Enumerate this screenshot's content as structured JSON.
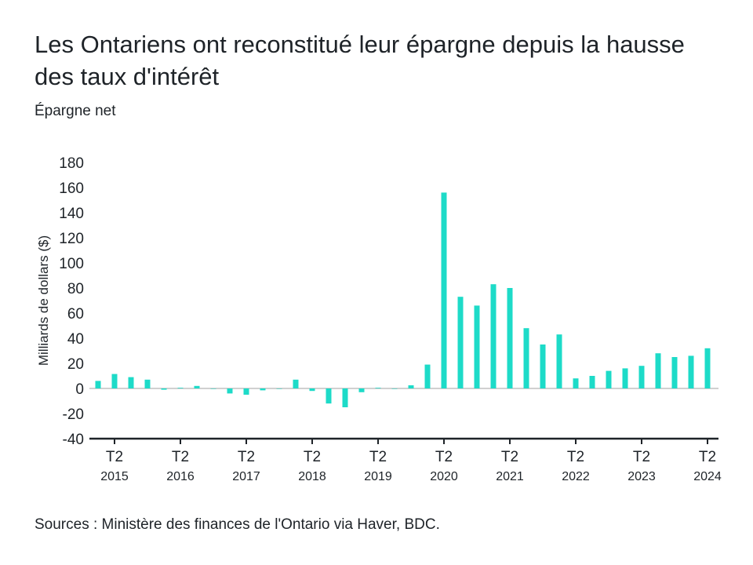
{
  "title": "Les Ontariens ont reconstitué leur épargne depuis la hausse des taux d'intérêt",
  "subtitle": "Épargne net",
  "source": "Sources : Ministère des finances de l'Ontario via Haver, BDC.",
  "chart_data": {
    "type": "bar",
    "ylabel": "Milliards de dollars ($)",
    "ylim": [
      -40,
      180
    ],
    "yticks": [
      -40,
      -20,
      0,
      20,
      40,
      60,
      80,
      100,
      120,
      140,
      160,
      180
    ],
    "bar_color": "#1ddbc8",
    "x_tick_labels": [
      {
        "quarter": "T2",
        "year": "2015"
      },
      {
        "quarter": "T2",
        "year": "2016"
      },
      {
        "quarter": "T2",
        "year": "2017"
      },
      {
        "quarter": "T2",
        "year": "2018"
      },
      {
        "quarter": "T2",
        "year": "2019"
      },
      {
        "quarter": "T2",
        "year": "2020"
      },
      {
        "quarter": "T2",
        "year": "2021"
      },
      {
        "quarter": "T2",
        "year": "2022"
      },
      {
        "quarter": "T2",
        "year": "2023"
      },
      {
        "quarter": "T2",
        "year": "2024"
      }
    ],
    "categories": [
      "T1 2015",
      "T2 2015",
      "T3 2015",
      "T4 2015",
      "T1 2016",
      "T2 2016",
      "T3 2016",
      "T4 2016",
      "T1 2017",
      "T2 2017",
      "T3 2017",
      "T4 2017",
      "T1 2018",
      "T2 2018",
      "T3 2018",
      "T4 2018",
      "T1 2019",
      "T2 2019",
      "T3 2019",
      "T4 2019",
      "T1 2020",
      "T2 2020",
      "T3 2020",
      "T4 2020",
      "T1 2021",
      "T2 2021",
      "T3 2021",
      "T4 2021",
      "T1 2022",
      "T2 2022",
      "T3 2022",
      "T4 2022",
      "T1 2023",
      "T2 2023",
      "T3 2023",
      "T4 2023",
      "T1 2024",
      "T2 2024"
    ],
    "values": [
      6,
      11.5,
      9,
      7,
      -1,
      0.5,
      2,
      0,
      -4,
      -5,
      -1.5,
      0,
      7,
      -2,
      -12,
      -15,
      -3,
      0.5,
      0,
      2.5,
      19,
      156,
      73,
      66,
      83,
      80,
      48,
      35,
      43,
      8,
      10,
      14,
      16,
      18,
      28,
      25,
      26,
      32
    ]
  }
}
